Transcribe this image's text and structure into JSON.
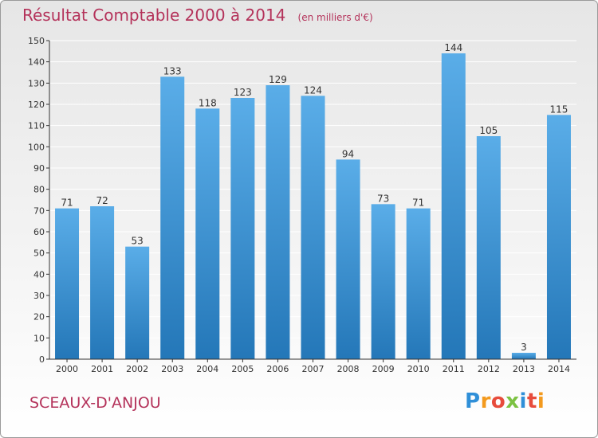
{
  "header": {
    "title": "Résultat Comptable 2000 à 2014",
    "subtitle": "(en milliers d'€)"
  },
  "footer": {
    "commune": "SCEAUX-D'ANJOU",
    "brand": "Proxiti"
  },
  "colors": {
    "title": "#b4325a",
    "bar_top": "#5aade8",
    "bar_bottom": "#2477b8",
    "grid": "#ffffff",
    "axis": "#333333"
  },
  "chart_data": {
    "type": "bar",
    "title": "Résultat Comptable 2000 à 2014",
    "subtitle": "(en milliers d'€)",
    "xlabel": "",
    "ylabel": "",
    "categories": [
      "2000",
      "2001",
      "2002",
      "2003",
      "2004",
      "2005",
      "2006",
      "2007",
      "2008",
      "2009",
      "2010",
      "2011",
      "2012",
      "2013",
      "2014"
    ],
    "values": [
      71,
      72,
      53,
      133,
      118,
      123,
      129,
      124,
      94,
      73,
      71,
      144,
      105,
      3,
      115
    ],
    "ylim": [
      0,
      150
    ],
    "yticks": [
      0,
      10,
      20,
      30,
      40,
      50,
      60,
      70,
      80,
      90,
      100,
      110,
      120,
      130,
      140,
      150
    ],
    "grid": true,
    "legend": "none"
  }
}
